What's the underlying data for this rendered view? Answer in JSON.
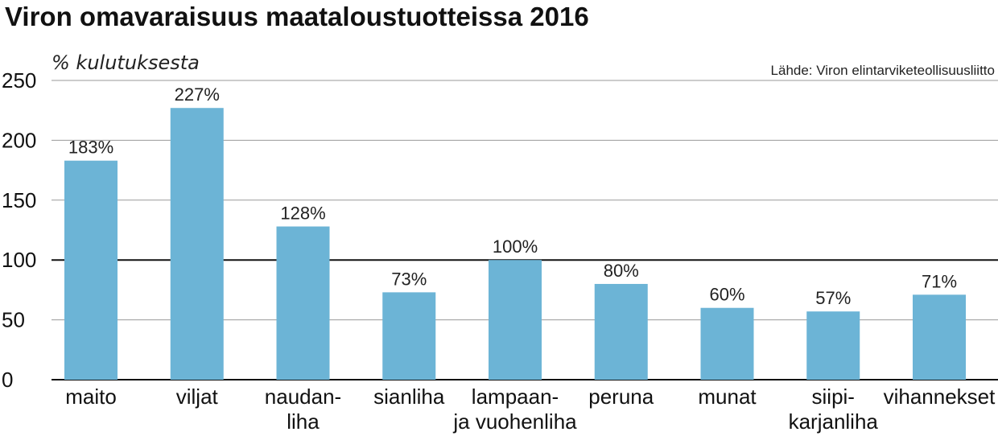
{
  "chart_data": {
    "type": "bar",
    "title": "Viron omavaraisuus maataloustuotteissa 2016",
    "ylabel": "% kulutuksesta",
    "source": "Lähde: Viron elintarviketeollisuusliitto",
    "ylim": [
      0,
      250
    ],
    "yticks": [
      0,
      50,
      100,
      150,
      200,
      250
    ],
    "reference_line": 100,
    "categories": [
      [
        "maito"
      ],
      [
        "viljat"
      ],
      [
        "naudan-",
        "liha"
      ],
      [
        "sianliha"
      ],
      [
        "lampaan-",
        "ja vuohenliha"
      ],
      [
        "peruna"
      ],
      [
        "munat"
      ],
      [
        "siipi-",
        "karjanliha"
      ],
      [
        "vihannekset"
      ]
    ],
    "values": [
      183,
      227,
      128,
      73,
      100,
      80,
      60,
      57,
      71
    ],
    "data_labels": [
      "183%",
      "227%",
      "128%",
      "73%",
      "100%",
      "80%",
      "60%",
      "57%",
      "71%"
    ],
    "bar_color": "#6cb4d6",
    "grid": true
  }
}
